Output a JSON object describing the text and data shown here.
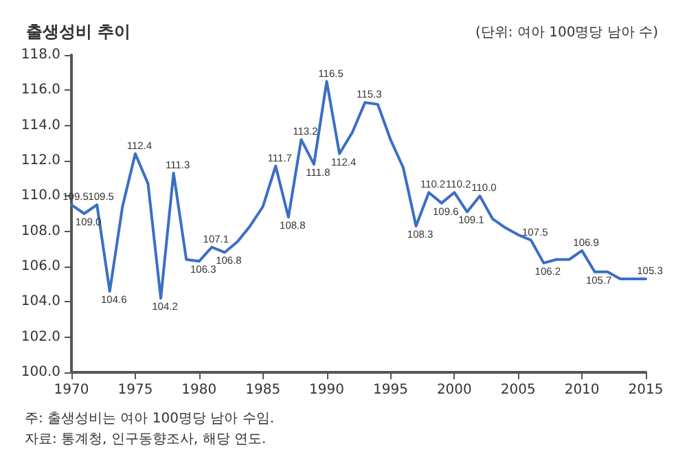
{
  "chart_data": {
    "type": "line",
    "title": "출생성비 추이",
    "subtitle": "(단위: 여아 100명당 남아 수)",
    "annotations": [
      "주: 출생성비는 여아 100명당 남아 수임.",
      "자료: 통계청, 인구동향조사, 해당 연도."
    ],
    "x": [
      1970,
      1971,
      1972,
      1973,
      1974,
      1975,
      1976,
      1977,
      1978,
      1979,
      1980,
      1981,
      1982,
      1983,
      1984,
      1985,
      1986,
      1987,
      1988,
      1989,
      1990,
      1991,
      1992,
      1993,
      1994,
      1995,
      1996,
      1997,
      1998,
      1999,
      2000,
      2001,
      2002,
      2003,
      2004,
      2005,
      2006,
      2007,
      2008,
      2009,
      2010,
      2011,
      2012,
      2013,
      2014,
      2015
    ],
    "series": [
      {
        "color": "#3b6fc4",
        "values": [
          109.5,
          109.0,
          109.5,
          104.6,
          109.4,
          112.4,
          110.7,
          104.2,
          111.3,
          106.4,
          106.3,
          107.1,
          106.8,
          107.4,
          108.3,
          109.4,
          111.7,
          108.8,
          113.2,
          111.8,
          116.5,
          112.4,
          113.6,
          115.3,
          115.2,
          113.2,
          111.6,
          108.3,
          110.2,
          109.6,
          110.2,
          109.1,
          110.0,
          108.7,
          108.2,
          107.8,
          107.5,
          106.2,
          106.4,
          106.4,
          106.9,
          105.7,
          105.7,
          105.3,
          105.3,
          105.3
        ],
        "value_labels": [
          "109.5",
          "109.0",
          "109.5",
          "104.6",
          null,
          "112.4",
          null,
          "104.2",
          "111.3",
          null,
          "106.3",
          "107.1",
          "106.8",
          null,
          null,
          null,
          "111.7",
          "108.8",
          "113.2",
          "111.8",
          "116.5",
          "112.4",
          null,
          "115.3",
          null,
          null,
          null,
          "108.3",
          "110.2",
          "109.6",
          "110.2",
          "109.1",
          "110.0",
          null,
          null,
          null,
          "107.5",
          "106.2",
          null,
          null,
          "106.9",
          "105.7",
          null,
          null,
          null,
          "105.3"
        ]
      }
    ],
    "xlim": [
      1970,
      2015
    ],
    "xticks": [
      1970,
      1975,
      1980,
      1985,
      1990,
      1995,
      2000,
      2005,
      2010,
      2015
    ],
    "ylim": [
      100,
      118
    ],
    "yticks": [
      {
        "value": 100,
        "label": "100.0"
      },
      {
        "value": 102,
        "label": "102.0"
      },
      {
        "value": 104,
        "label": "104.0"
      },
      {
        "value": 106,
        "label": "106.0"
      },
      {
        "value": 108,
        "label": "108.0"
      },
      {
        "value": 110,
        "label": "110.0"
      },
      {
        "value": 112,
        "label": "112.0"
      },
      {
        "value": 114,
        "label": "114.0"
      },
      {
        "value": 116,
        "label": "116.0"
      },
      {
        "value": 118,
        "label": "118.0"
      }
    ],
    "grid": false,
    "marker": "none",
    "line_style": "solid"
  }
}
